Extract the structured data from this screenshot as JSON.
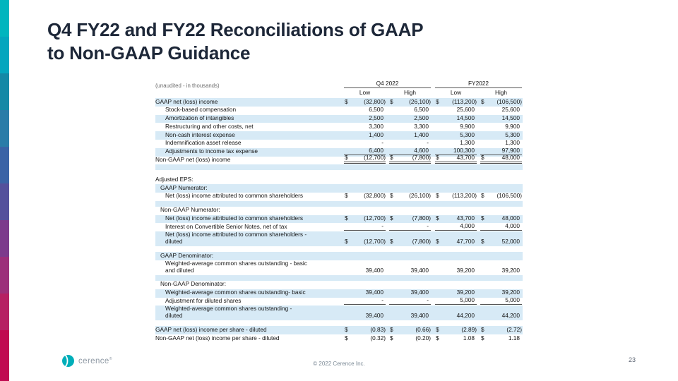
{
  "slide": {
    "title_line1": "Q4 FY22 and FY22 Reconciliations of GAAP",
    "title_line2": "to Non-GAAP Guidance",
    "page_number": "23",
    "footer_copyright": "© 2022 Cerence Inc.",
    "logo_text": "cerence",
    "logo_reg": "®"
  },
  "colors": {
    "logo_teal": "#00AEB9",
    "row_stripe": "#D7EAF6",
    "title_text": "#1D2738",
    "sidebar": [
      "#00B5BE",
      "#04A6BE",
      "#1489A6",
      "#2A7CA8",
      "#3A63A6",
      "#54509C",
      "#7C3A8C",
      "#9C2F7A",
      "#B62063",
      "#C00A50"
    ]
  },
  "table": {
    "note": "(unaudited - in thousands)",
    "currency": "$",
    "col_groups": [
      {
        "label": "Q4 2022"
      },
      {
        "label": "FY2022"
      }
    ],
    "sub_headers": [
      "Low",
      "High",
      "Low",
      "High"
    ],
    "rows": [
      {
        "type": "data",
        "label": "GAAP net (loss) income",
        "indent": 0,
        "dollar": true,
        "values": [
          "(32,800)",
          "(26,100)",
          "(113,200)",
          "(106,500)"
        ],
        "stripe": true
      },
      {
        "type": "data",
        "label": "Stock-based compensation",
        "indent": 2,
        "dollar": false,
        "values": [
          "6,500",
          "6,500",
          "25,600",
          "25,600"
        ],
        "stripe": false
      },
      {
        "type": "data",
        "label": "Amortization of intangibles",
        "indent": 2,
        "dollar": false,
        "values": [
          "2,500",
          "2,500",
          "14,500",
          "14,500"
        ],
        "stripe": true
      },
      {
        "type": "data",
        "label": "Restructuring and other costs, net",
        "indent": 2,
        "dollar": false,
        "values": [
          "3,300",
          "3,300",
          "9,900",
          "9,900"
        ],
        "stripe": false
      },
      {
        "type": "data",
        "label": "Non-cash interest expense",
        "indent": 2,
        "dollar": false,
        "values": [
          "1,400",
          "1,400",
          "5,300",
          "5,300"
        ],
        "stripe": true
      },
      {
        "type": "data",
        "label": "Indemnification asset release",
        "indent": 2,
        "dollar": false,
        "values": [
          "-",
          "-",
          "1,300",
          "1,300"
        ],
        "stripe": false
      },
      {
        "type": "data",
        "label": "Adjustments to income tax expense",
        "indent": 2,
        "dollar": false,
        "values": [
          "6,400",
          "4,600",
          "100,300",
          "97,900"
        ],
        "stripe": true,
        "border": "sum"
      },
      {
        "type": "data",
        "label": "Non-GAAP net (loss) income",
        "indent": 0,
        "dollar": true,
        "values": [
          "(12,700)",
          "(7,800)",
          "43,700",
          "48,000"
        ],
        "stripe": false,
        "border": "total"
      },
      {
        "type": "blank",
        "stripe": true
      },
      {
        "type": "blank",
        "stripe": false
      },
      {
        "type": "section",
        "label": "Adjusted EPS:",
        "indent": 0,
        "stripe": false
      },
      {
        "type": "section",
        "label": "GAAP Numerator:",
        "indent": 1,
        "stripe": true
      },
      {
        "type": "data",
        "label": "Net (loss) income attributed to common shareholders",
        "indent": 2,
        "dollar": true,
        "values": [
          "(32,800)",
          "(26,100)",
          "(113,200)",
          "(106,500)"
        ],
        "stripe": false
      },
      {
        "type": "blank",
        "stripe": true
      },
      {
        "type": "section",
        "label": "Non-GAAP Numerator:",
        "indent": 1,
        "stripe": false
      },
      {
        "type": "data",
        "label": "Net (loss) income attributed to common shareholders",
        "indent": 2,
        "dollar": true,
        "values": [
          "(12,700)",
          "(7,800)",
          "43,700",
          "48,000"
        ],
        "stripe": true
      },
      {
        "type": "data",
        "label": "Interest on Convertible Senior Notes, net of tax",
        "indent": 2,
        "dollar": false,
        "values": [
          "-",
          "-",
          "4,000",
          "4,000"
        ],
        "stripe": false,
        "border": "sum"
      },
      {
        "type": "data",
        "label": "Net (loss) income attributed to common shareholders -",
        "label2": "diluted",
        "indent": 2,
        "dollar": true,
        "values": [
          "(12,700)",
          "(7,800)",
          "47,700",
          "52,000"
        ],
        "stripe": true
      },
      {
        "type": "blank",
        "stripe": false
      },
      {
        "type": "section",
        "label": "GAAP Denominator:",
        "indent": 1,
        "stripe": true
      },
      {
        "type": "data",
        "label": "Weighted-average common shares outstanding - basic",
        "label2": "and diluted",
        "indent": 2,
        "dollar": false,
        "values": [
          "39,400",
          "39,400",
          "39,200",
          "39,200"
        ],
        "stripe": false
      },
      {
        "type": "blank",
        "stripe": true
      },
      {
        "type": "section",
        "label": "Non-GAAP Denominator:",
        "indent": 1,
        "stripe": false
      },
      {
        "type": "data",
        "label": "Weighted-average common shares outstanding- basic",
        "indent": 2,
        "dollar": false,
        "values": [
          "39,400",
          "39,400",
          "39,200",
          "39,200"
        ],
        "stripe": true
      },
      {
        "type": "data",
        "label": "Adjustment for diluted shares",
        "indent": 2,
        "dollar": false,
        "values": [
          "-",
          "-",
          "5,000",
          "5,000"
        ],
        "stripe": false,
        "border": "sum"
      },
      {
        "type": "data",
        "label": "Weighted-average common shares outstanding -",
        "label2": "diluted",
        "indent": 2,
        "dollar": false,
        "values": [
          "39,400",
          "39,400",
          "44,200",
          "44,200"
        ],
        "stripe": true
      },
      {
        "type": "blank",
        "stripe": false
      },
      {
        "type": "data",
        "label": "GAAP net (loss) income per share - diluted",
        "indent": 0,
        "dollar": true,
        "values": [
          "(0.83)",
          "(0.66)",
          "(2.89)",
          "(2.72)"
        ],
        "stripe": true
      },
      {
        "type": "data",
        "label": "Non-GAAP net (loss) income per share - diluted",
        "indent": 0,
        "dollar": true,
        "values": [
          "(0.32)",
          "(0.20)",
          "1.08",
          "1.18"
        ],
        "stripe": false
      }
    ]
  }
}
